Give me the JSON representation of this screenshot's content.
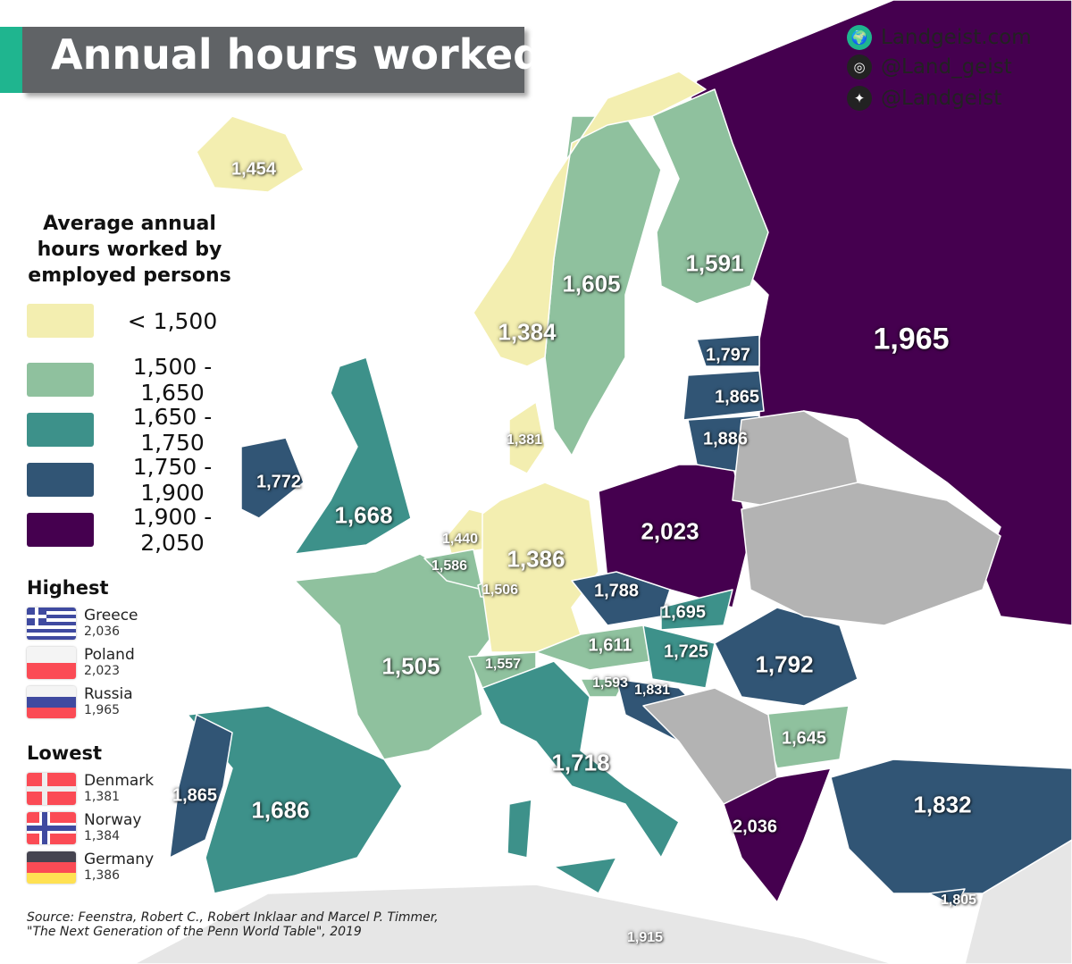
{
  "title": "Annual hours worked",
  "social": [
    {
      "icon": "globe-icon",
      "text": "Landgeist.com"
    },
    {
      "icon": "instagram-icon",
      "text": "@Land_geist"
    },
    {
      "icon": "twitter-icon",
      "text": "@Landgeist"
    }
  ],
  "legend": {
    "title": "Average annual hours worked by employed persons",
    "items": [
      {
        "label": "< 1,500",
        "color": "#f3eeb0"
      },
      {
        "label": "1,500 - 1,650",
        "color": "#8fc19e"
      },
      {
        "label": "1,650 - 1,750",
        "color": "#3d918a"
      },
      {
        "label": "1,750 - 1,900",
        "color": "#315575"
      },
      {
        "label": "1,900 - 2,050",
        "color": "#45004f"
      }
    ],
    "no_data_color": "#b3b3b3"
  },
  "highest": {
    "title": "Highest",
    "items": [
      {
        "country": "Greece",
        "value": "2,036",
        "flag": "greece-flag"
      },
      {
        "country": "Poland",
        "value": "2,023",
        "flag": "poland-flag"
      },
      {
        "country": "Russia",
        "value": "1,965",
        "flag": "russia-flag"
      }
    ]
  },
  "lowest": {
    "title": "Lowest",
    "items": [
      {
        "country": "Denmark",
        "value": "1,381",
        "flag": "denmark-flag"
      },
      {
        "country": "Norway",
        "value": "1,384",
        "flag": "norway-flag"
      },
      {
        "country": "Germany",
        "value": "1,386",
        "flag": "germany-flag"
      }
    ]
  },
  "source": {
    "line1": "Source: Feenstra, Robert C., Robert Inklaar and Marcel P. Timmer,",
    "line2": "\"The Next Generation of the Penn World Table\", 2019"
  },
  "map": {
    "labels": [
      "1,454",
      "1,965",
      "1,605",
      "1,591",
      "1,384",
      "1,797",
      "1,865",
      "1,381",
      "1,886",
      "1,772",
      "1,668",
      "2,023",
      "1,440",
      "1,386",
      "1,586",
      "1,506",
      "1,788",
      "1,695",
      "1,611",
      "1,725",
      "1,505",
      "1,557",
      "1,792",
      "1,593",
      "1,831",
      "1,645",
      "1,718",
      "1,865",
      "1,686",
      "1,832",
      "2,036",
      "1,805",
      "1,915"
    ]
  }
}
